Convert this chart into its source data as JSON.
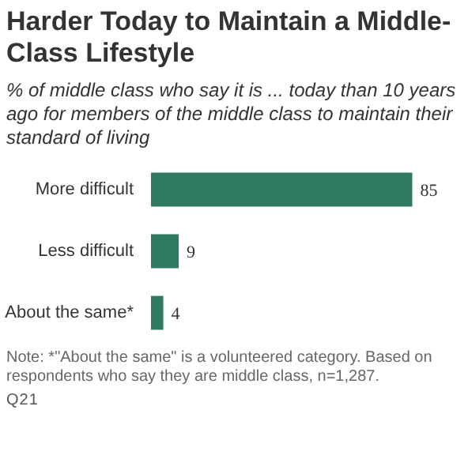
{
  "chart_data": {
    "type": "bar",
    "orientation": "horizontal",
    "title": "Harder Today to Maintain a Middle-Class Lifestyle",
    "subtitle": "% of middle class who say it is ... today than 10 years ago for members of the middle class to maintain their standard of living",
    "categories": [
      "More difficult",
      "Less difficult",
      "About the same*"
    ],
    "values": [
      85,
      9,
      4
    ],
    "color": "#2e7a60",
    "data_labels": true,
    "annotations": [
      "Note: *\"About the same\" is a volunteered category. Based on respondents who say they are middle class, n=1,287.",
      "Q21"
    ]
  }
}
